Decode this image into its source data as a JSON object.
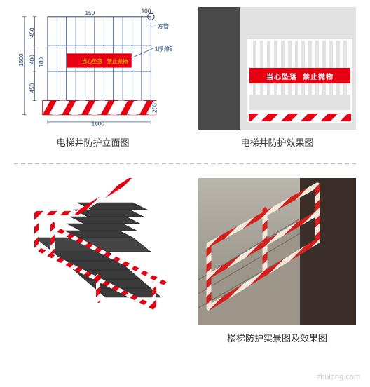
{
  "panel1": {
    "caption": "电梯井防护立面图",
    "type": "diagram",
    "dims": {
      "total_height": 1500,
      "total_width": 1600,
      "top_segment": 450,
      "mid_segment": 400,
      "band_height": 180,
      "bottom_segment": 450,
      "kick_height": 200,
      "tube_spacing": 150,
      "cap": 100
    },
    "labels": {
      "tube": "方管",
      "sheet": "1厚薄铁皮"
    },
    "band_text_left": "当心坠落",
    "band_text_right": "禁止抛物",
    "colors": {
      "line": "#1a3a6e",
      "band": "#e60012",
      "band_text": "#ffe600",
      "hazard_a": "#e60012",
      "hazard_b": "#ffffff"
    },
    "bar_count": 12
  },
  "panel2": {
    "caption": "电梯井防护效果图",
    "type": "infographic",
    "band_text_left": "当心坠落",
    "band_text_right": "禁止抛物",
    "colors": {
      "band": "#e60012",
      "bar": "#ffffff",
      "concrete_dark": "#4a4a4a",
      "concrete_light": "#e2e2e2"
    },
    "bar_count": 15
  },
  "panel3": {
    "type": "infographic",
    "stair": {
      "step_count": 8,
      "step_color": "#3b3b3b",
      "landing_color": "#444"
    },
    "rail": {
      "stripe_a": "#e60012",
      "stripe_b": "#ffffff",
      "tube_dia": 6
    }
  },
  "panel4": {
    "type": "infographic",
    "caption": "楼梯防护实景图及效果图",
    "bg": "#a49e92",
    "rail": {
      "stripe_a": "#d41f1f",
      "stripe_b": "#f0e9dc"
    }
  },
  "watermark": "zhulong.com"
}
